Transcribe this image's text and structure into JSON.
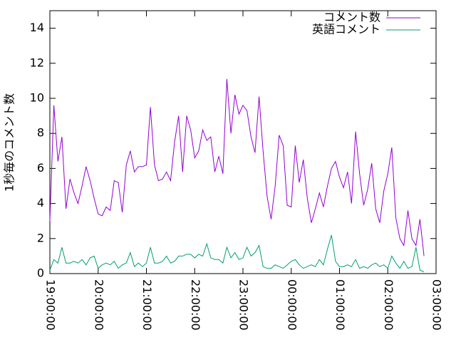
{
  "chart_data": {
    "type": "line",
    "y_label": "1秒毎のコメント数",
    "x": [
      "19:00:00",
      "19:05:00",
      "19:10:00",
      "19:15:00",
      "19:20:00",
      "19:25:00",
      "19:30:00",
      "19:35:00",
      "19:40:00",
      "19:45:00",
      "19:50:00",
      "19:55:00",
      "20:00:00",
      "20:05:00",
      "20:10:00",
      "20:15:00",
      "20:20:00",
      "20:25:00",
      "20:30:00",
      "20:35:00",
      "20:40:00",
      "20:45:00",
      "20:50:00",
      "20:55:00",
      "21:00:00",
      "21:05:00",
      "21:10:00",
      "21:15:00",
      "21:20:00",
      "21:25:00",
      "21:30:00",
      "21:35:00",
      "21:40:00",
      "21:45:00",
      "21:50:00",
      "21:55:00",
      "22:00:00",
      "22:05:00",
      "22:10:00",
      "22:15:00",
      "22:20:00",
      "22:25:00",
      "22:30:00",
      "22:35:00",
      "22:40:00",
      "22:45:00",
      "22:50:00",
      "22:55:00",
      "23:00:00",
      "23:05:00",
      "23:10:00",
      "23:15:00",
      "23:20:00",
      "23:25:00",
      "23:30:00",
      "23:35:00",
      "23:40:00",
      "23:45:00",
      "23:50:00",
      "23:55:00",
      "00:00:00",
      "00:05:00",
      "00:10:00",
      "00:15:00",
      "00:20:00",
      "00:25:00",
      "00:30:00",
      "00:35:00",
      "00:40:00",
      "00:45:00",
      "00:50:00",
      "00:55:00",
      "01:00:00",
      "01:05:00",
      "01:10:00",
      "01:15:00",
      "01:20:00",
      "01:25:00",
      "01:30:00",
      "01:35:00",
      "01:40:00",
      "01:45:00",
      "01:50:00",
      "01:55:00",
      "02:00:00",
      "02:05:00",
      "02:10:00",
      "02:15:00",
      "02:20:00",
      "02:25:00",
      "02:30:00",
      "02:35:00",
      "02:40:00",
      "02:45:00"
    ],
    "series": [
      {
        "name": "コメント数",
        "color": "#9400d3",
        "values": [
          3.0,
          9.6,
          6.4,
          7.8,
          3.7,
          5.4,
          4.6,
          4.0,
          5.0,
          6.1,
          5.3,
          4.3,
          3.4,
          3.3,
          3.8,
          3.6,
          5.3,
          5.2,
          3.5,
          6.2,
          7.0,
          5.8,
          6.1,
          6.1,
          6.2,
          9.5,
          6.2,
          5.3,
          5.4,
          5.8,
          5.3,
          7.5,
          9.0,
          5.8,
          9.0,
          8.2,
          6.6,
          7.0,
          8.2,
          7.6,
          7.8,
          5.8,
          6.7,
          5.7,
          11.1,
          8.0,
          10.2,
          9.1,
          9.6,
          9.3,
          7.8,
          6.9,
          10.1,
          7.0,
          4.4,
          3.1,
          5.0,
          7.9,
          7.3,
          3.9,
          3.8,
          7.3,
          5.2,
          6.5,
          4.3,
          2.9,
          3.7,
          4.6,
          3.8,
          5.0,
          6.0,
          6.4,
          5.5,
          4.9,
          5.8,
          4.0,
          8.1,
          5.7,
          3.9,
          4.8,
          6.3,
          3.7,
          2.9,
          4.7,
          5.7,
          7.2,
          3.2,
          2.0,
          1.6,
          3.6,
          2.0,
          1.6,
          3.1,
          1.0
        ]
      },
      {
        "name": "英語コメント",
        "color": "#009e73",
        "values": [
          0.2,
          0.8,
          0.6,
          1.5,
          0.6,
          0.6,
          0.7,
          0.6,
          0.8,
          0.5,
          0.9,
          1.0,
          0.3,
          0.5,
          0.6,
          0.5,
          0.7,
          0.3,
          0.5,
          0.6,
          1.2,
          0.4,
          0.6,
          0.4,
          0.6,
          1.5,
          0.6,
          0.6,
          0.7,
          1.0,
          0.6,
          0.7,
          1.0,
          1.0,
          1.1,
          1.1,
          0.9,
          1.1,
          1.0,
          1.7,
          0.9,
          0.8,
          0.8,
          0.6,
          1.5,
          0.9,
          1.2,
          0.8,
          0.9,
          1.5,
          1.0,
          1.2,
          1.6,
          0.4,
          0.3,
          0.3,
          0.5,
          0.4,
          0.3,
          0.5,
          0.7,
          0.8,
          0.5,
          0.3,
          0.4,
          0.5,
          0.4,
          0.8,
          0.5,
          1.4,
          2.2,
          0.7,
          0.4,
          0.4,
          0.5,
          0.4,
          0.8,
          0.3,
          0.4,
          0.3,
          0.5,
          0.6,
          0.4,
          0.5,
          0.3,
          1.0,
          0.6,
          0.3,
          0.7,
          0.3,
          0.4,
          1.5,
          0.2,
          0.1
        ]
      }
    ],
    "xlim": [
      "19:00:00",
      "03:00:00"
    ],
    "xticks": [
      "19:00:00",
      "20:00:00",
      "21:00:00",
      "22:00:00",
      "23:00:00",
      "00:00:00",
      "01:00:00",
      "02:00:00",
      "03:00:00"
    ],
    "ylim": [
      0,
      15
    ],
    "yticks": [
      0,
      2,
      4,
      6,
      8,
      10,
      12,
      14
    ],
    "legend": "top-right",
    "grid": false
  }
}
